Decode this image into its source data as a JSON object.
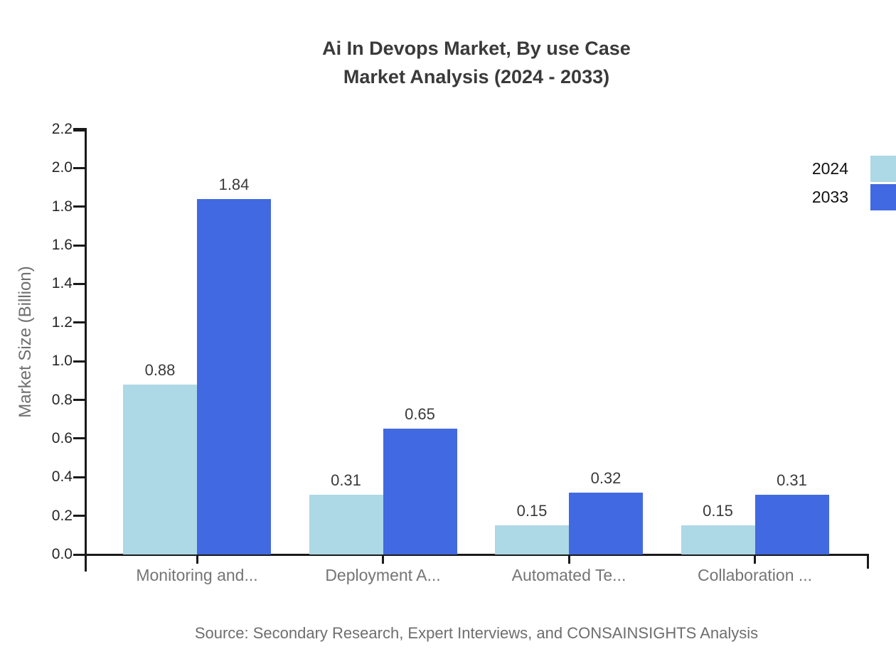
{
  "chart_data": {
    "type": "bar",
    "title": "Ai In Devops Market, By use Case",
    "subtitle": "Market Analysis (2024 - 2033)",
    "categories": [
      "Monitoring and...",
      "Deployment A...",
      "Automated Te...",
      "Collaboration ..."
    ],
    "series": [
      {
        "name": "2024",
        "color": "#ADD8E6",
        "values": [
          0.88,
          0.31,
          0.15,
          0.15
        ]
      },
      {
        "name": "2033",
        "color": "#4169E1",
        "values": [
          1.84,
          0.65,
          0.32,
          0.31
        ]
      }
    ],
    "xlabel": "",
    "ylabel": "Market Size (Billion)",
    "ylim": [
      0,
      2.2
    ],
    "ytick_step": 0.2,
    "ytick_labels": [
      "0.0",
      "0.2",
      "0.4",
      "0.6",
      "0.8",
      "1.0",
      "1.2",
      "1.4",
      "1.6",
      "1.8",
      "2.0",
      "2.2"
    ],
    "grid": false,
    "legend_position": "top-right",
    "value_labels": true,
    "source": "Source: Secondary Research, Expert Interviews, and CONSAINSIGHTS Analysis"
  },
  "colors": {
    "title": "#3a3a3a",
    "axis": "#1a1a1a",
    "tick_label": "#262626",
    "category_label": "#757575",
    "value_label": "#3a3a3a",
    "muted_text": "#6e6e6e",
    "background": "#ffffff"
  }
}
